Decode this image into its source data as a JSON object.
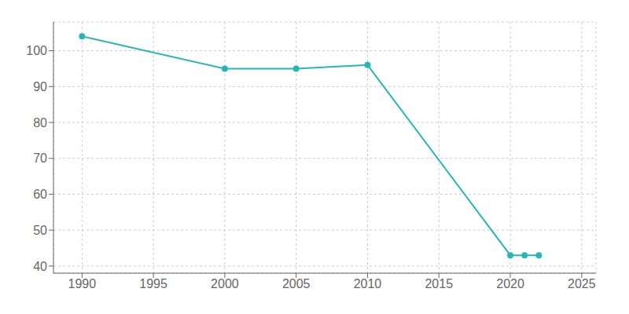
{
  "chart_data": {
    "type": "line",
    "x": [
      1990,
      2000,
      2005,
      2010,
      2020,
      2021,
      2022
    ],
    "values": [
      104,
      95,
      95,
      96,
      43,
      43,
      43
    ],
    "color": "#2ab5b5",
    "marker": "circle",
    "xlim": [
      1988,
      2026
    ],
    "ylim": [
      38,
      108
    ],
    "xticks": [
      1990,
      1995,
      2000,
      2005,
      2010,
      2015,
      2020,
      2025
    ],
    "yticks": [
      40,
      50,
      60,
      70,
      80,
      90,
      100
    ],
    "grid": true
  }
}
